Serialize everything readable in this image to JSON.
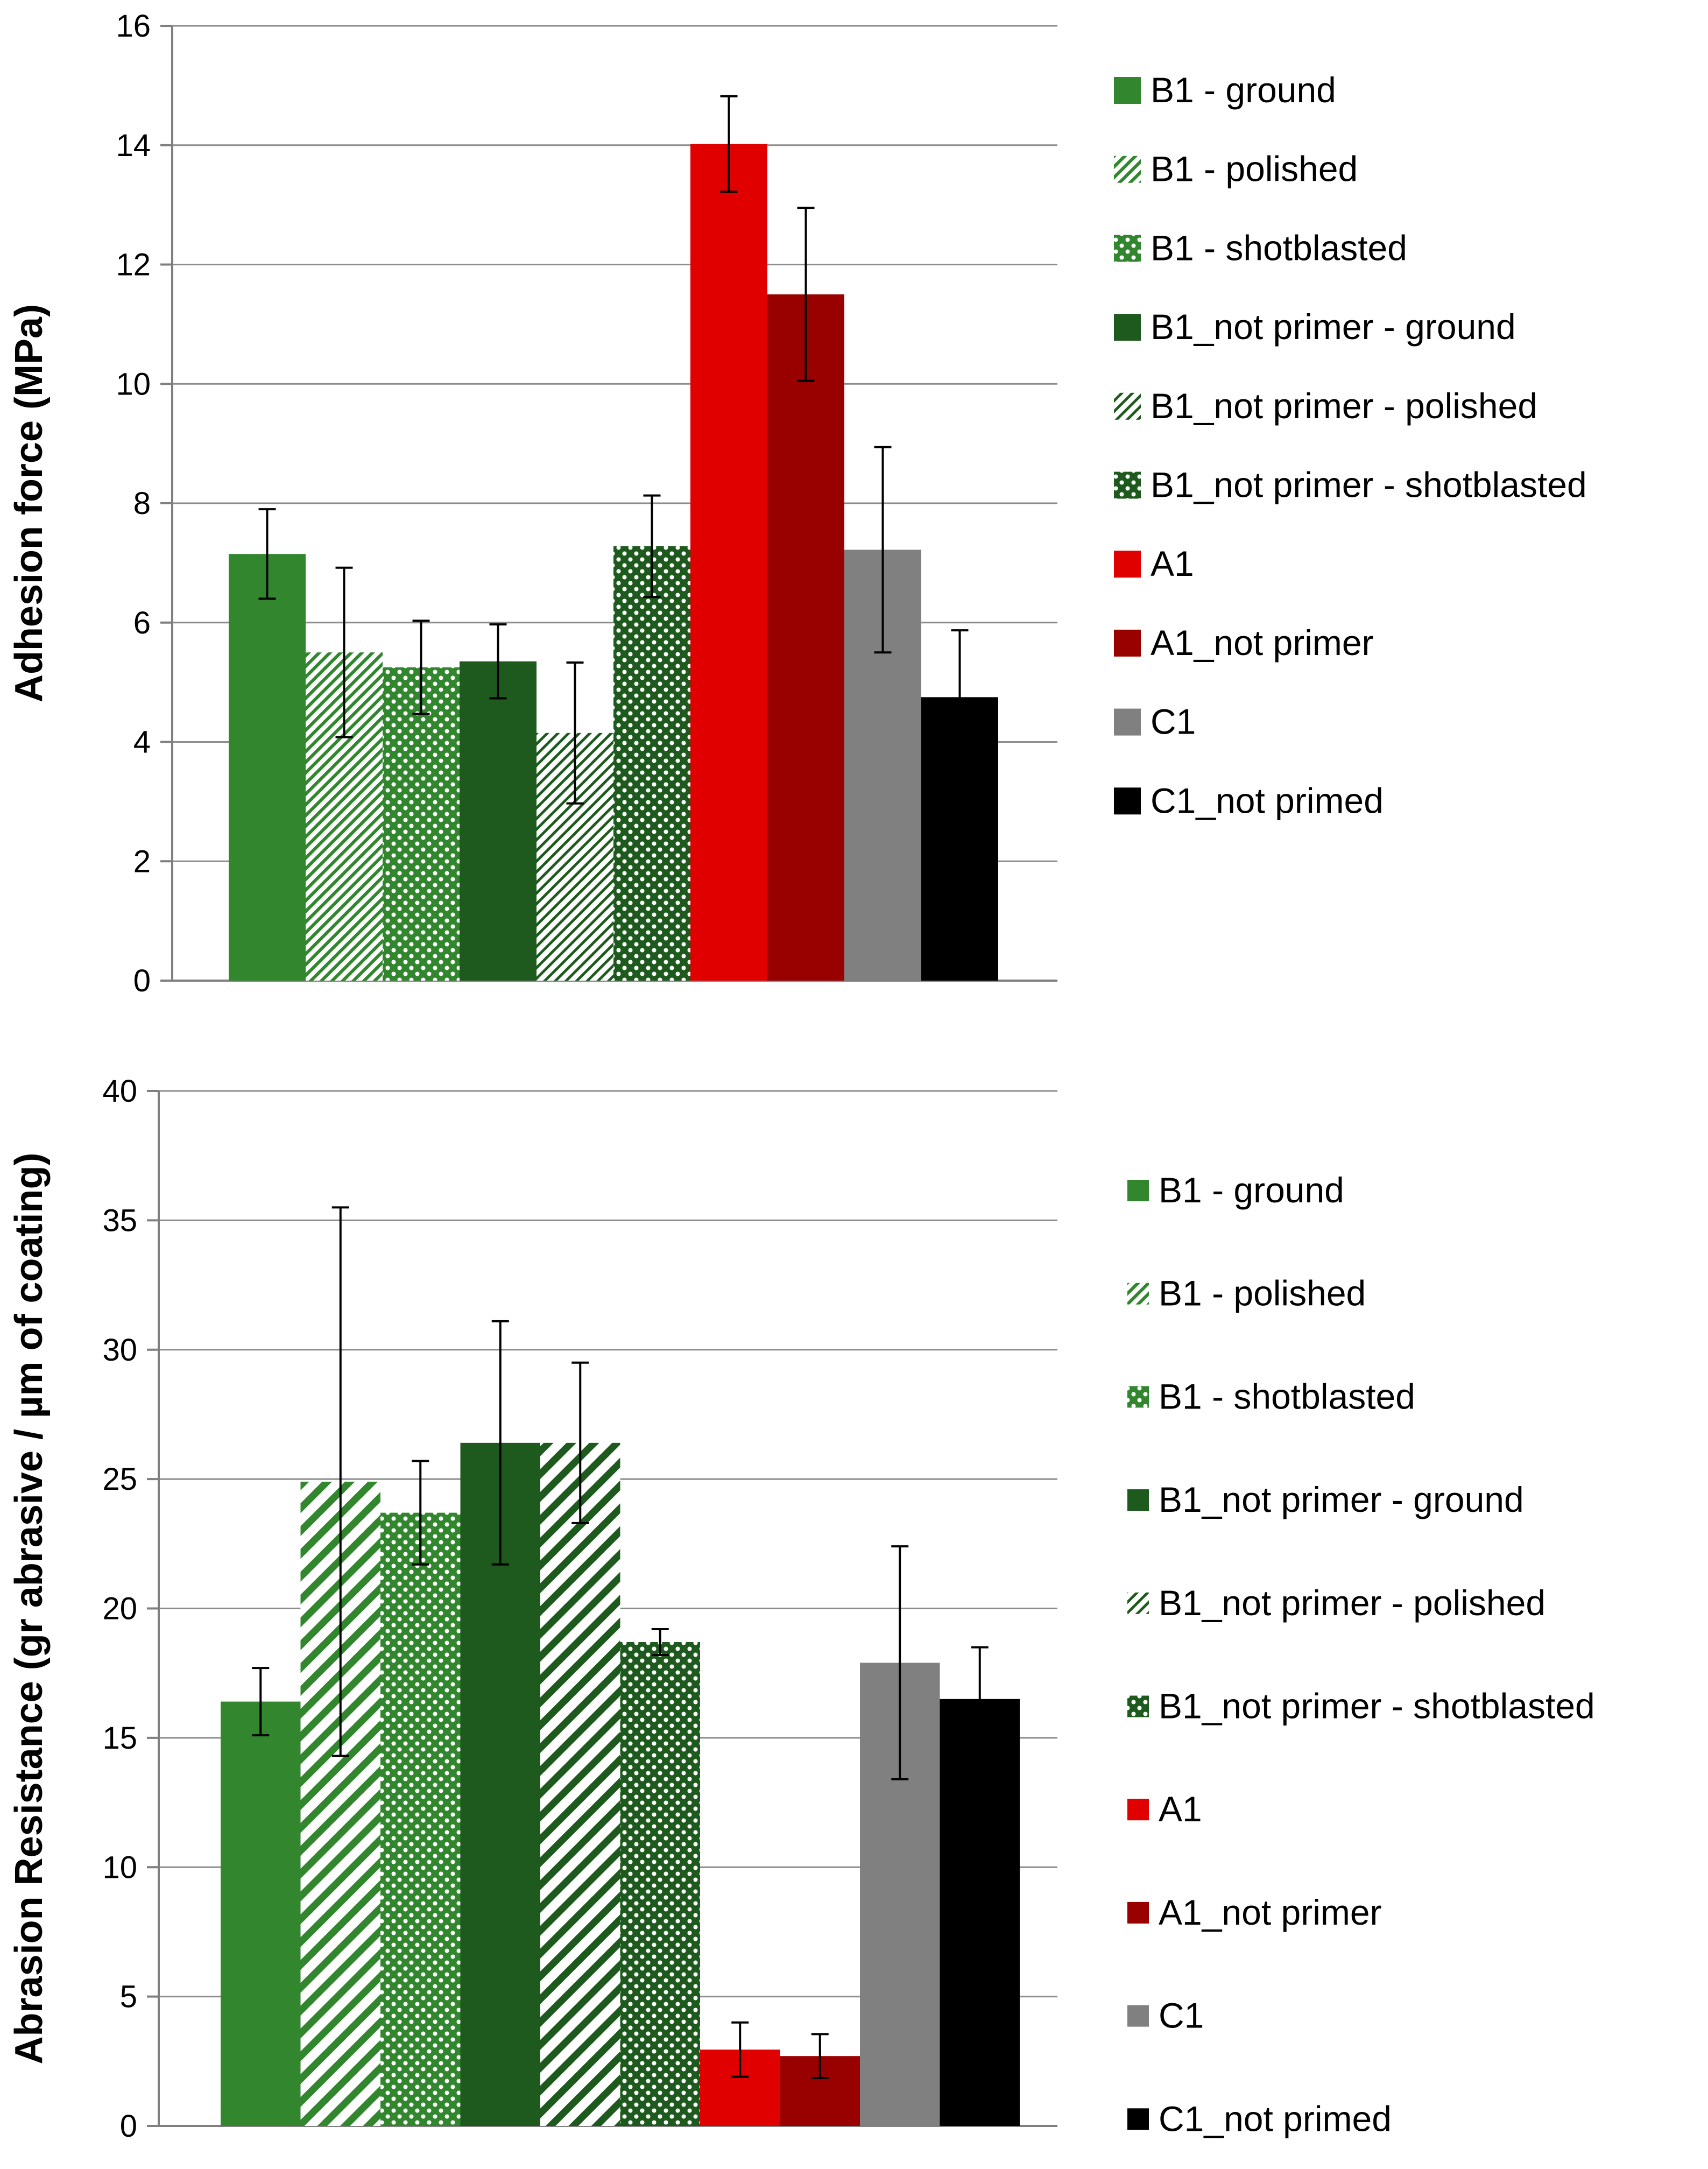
{
  "chart_data": [
    {
      "type": "bar",
      "title": "",
      "xlabel": "",
      "ylabel": "Adhesion force (MPa)",
      "ylim": [
        0,
        16
      ],
      "yticks": [
        0,
        2,
        4,
        6,
        8,
        10,
        12,
        14,
        16
      ],
      "grid": true,
      "legend_position": "right",
      "series": [
        {
          "name": "B1 - ground",
          "value": 7.15,
          "error": 0.75,
          "color": "#31862e",
          "pattern": "solid"
        },
        {
          "name": "B1 - polished",
          "value": 5.5,
          "error": 1.42,
          "color": "#31862e",
          "pattern": "fine-diagonal"
        },
        {
          "name": "B1 - shotblasted",
          "value": 5.25,
          "error": 0.78,
          "color": "#31862e",
          "pattern": "dots"
        },
        {
          "name": "B1_not primer - ground",
          "value": 5.35,
          "error": 0.62,
          "color": "#1e5a1e",
          "pattern": "solid"
        },
        {
          "name": "B1_not primer - polished",
          "value": 4.15,
          "error": 1.18,
          "color": "#1e5a1e",
          "pattern": "fine-diagonal"
        },
        {
          "name": "B1_not primer - shotblasted",
          "value": 7.28,
          "error": 0.85,
          "color": "#1e5a1e",
          "pattern": "dots"
        },
        {
          "name": "A1",
          "value": 14.02,
          "error": 0.8,
          "color": "#e00000",
          "pattern": "solid"
        },
        {
          "name": "A1_not primer",
          "value": 11.5,
          "error": 1.45,
          "color": "#990000",
          "pattern": "solid"
        },
        {
          "name": "C1",
          "value": 7.22,
          "error": 1.72,
          "color": "#808080",
          "pattern": "solid"
        },
        {
          "name": "C1_not primed",
          "value": 4.75,
          "error": 1.12,
          "color": "#000000",
          "pattern": "solid"
        }
      ]
    },
    {
      "type": "bar",
      "title": "",
      "xlabel": "",
      "ylabel": "Abrasion Resistance (gr abrasive / µm of coating)",
      "ylim": [
        0,
        40
      ],
      "yticks": [
        0,
        5,
        10,
        15,
        20,
        25,
        30,
        35,
        40
      ],
      "grid": true,
      "legend_position": "right",
      "series": [
        {
          "name": "B1 - ground",
          "value": 16.4,
          "error": 1.3,
          "color": "#31862e",
          "pattern": "solid"
        },
        {
          "name": "B1 - polished",
          "value": 24.9,
          "error": 10.6,
          "color": "#31862e",
          "pattern": "wide-diagonal"
        },
        {
          "name": "B1 - shotblasted",
          "value": 23.7,
          "error": 2.0,
          "color": "#31862e",
          "pattern": "dots"
        },
        {
          "name": "B1_not primer - ground",
          "value": 26.4,
          "error": 4.7,
          "color": "#1e5a1e",
          "pattern": "solid"
        },
        {
          "name": "B1_not primer - polished",
          "value": 26.4,
          "error": 3.1,
          "color": "#1e5a1e",
          "pattern": "wide-diagonal"
        },
        {
          "name": "B1_not primer - shotblasted",
          "value": 18.7,
          "error": 0.5,
          "color": "#1e5a1e",
          "pattern": "dots"
        },
        {
          "name": "A1",
          "value": 2.95,
          "error": 1.05,
          "color": "#e00000",
          "pattern": "solid"
        },
        {
          "name": "A1_not primer",
          "value": 2.7,
          "error": 0.85,
          "color": "#990000",
          "pattern": "solid"
        },
        {
          "name": "C1",
          "value": 17.9,
          "error": 4.5,
          "color": "#808080",
          "pattern": "solid"
        },
        {
          "name": "C1_not primed",
          "value": 16.5,
          "error": 2.0,
          "color": "#000000",
          "pattern": "solid"
        }
      ]
    }
  ]
}
